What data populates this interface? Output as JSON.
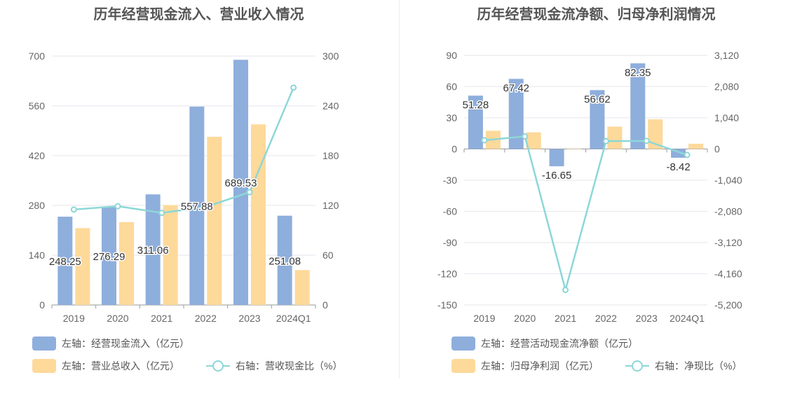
{
  "colors": {
    "blue": "#8eaedc",
    "orange": "#fdd99a",
    "teal": "#8dd7d8",
    "grid": "#e6e6ee",
    "text": "#666666"
  },
  "chart_data": [
    {
      "type": "bar",
      "title": "历年经营现金流入、营业收入情况",
      "categories": [
        "2019",
        "2020",
        "2021",
        "2022",
        "2023",
        "2024Q1"
      ],
      "y_left": {
        "ticks": [
          "0",
          "140",
          "280",
          "420",
          "560",
          "700"
        ],
        "ylim": [
          0,
          700
        ]
      },
      "y_right": {
        "ticks": [
          "0",
          "60",
          "120",
          "180",
          "240",
          "300"
        ],
        "ylim": [
          0,
          300
        ]
      },
      "series": [
        {
          "name": "左轴：经营现金流入（亿元）",
          "type": "bar",
          "axis": "left",
          "values": [
            248.25,
            276.29,
            311.06,
            557.88,
            689.53,
            251.08
          ],
          "labels": [
            "248.25",
            "276.29",
            "311.06",
            "557.88",
            "689.53",
            "251.08"
          ]
        },
        {
          "name": "左轴：营业总收入（亿元）",
          "type": "bar",
          "axis": "left",
          "values": [
            216,
            233,
            281,
            473,
            508,
            98
          ]
        },
        {
          "name": "右轴：营收现金比（%）",
          "type": "line",
          "axis": "right",
          "values": [
            115,
            119,
            111,
            118,
            136,
            262
          ]
        }
      ],
      "grid": true,
      "legend": "bottom"
    },
    {
      "type": "bar",
      "title": "历年经营现金流净额、归母净利润情况",
      "categories": [
        "2019",
        "2020",
        "2021",
        "2022",
        "2023",
        "2024Q1"
      ],
      "y_left": {
        "ticks": [
          "90",
          "60",
          "30",
          "0",
          "-30",
          "-60",
          "-90",
          "-120",
          "-150"
        ],
        "ylim": [
          -150,
          90
        ]
      },
      "y_right": {
        "ticks": [
          "3,120",
          "2,080",
          "1,040",
          "0",
          "-1,040",
          "-2,080",
          "-3,120",
          "-4,160",
          "-5,200"
        ],
        "ylim": [
          -5200,
          3120
        ]
      },
      "series": [
        {
          "name": "左轴：经营活动现金流净额（亿元）",
          "type": "bar",
          "axis": "left",
          "values": [
            51.28,
            67.42,
            -16.65,
            56.62,
            82.35,
            -8.42
          ],
          "labels": [
            "51.28",
            "67.42",
            "-16.65",
            "56.62",
            "82.35",
            "-8.42"
          ]
        },
        {
          "name": "左轴：归母净利润（亿元）",
          "type": "bar",
          "axis": "left",
          "values": [
            17.5,
            16.0,
            0.3,
            21.5,
            28.5,
            5.0
          ]
        },
        {
          "name": "右轴：净现比（%）",
          "type": "line",
          "axis": "right",
          "values": [
            290,
            420,
            -4700,
            260,
            270,
            -200
          ]
        }
      ],
      "grid": true,
      "legend": "bottom"
    }
  ]
}
